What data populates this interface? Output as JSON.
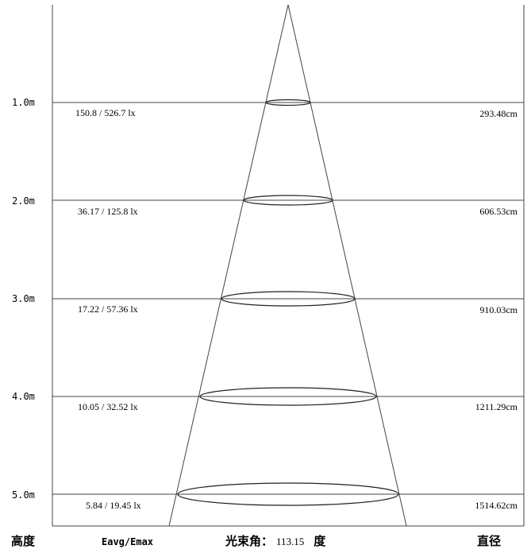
{
  "levels": [
    {
      "height_label": "1.0m",
      "lux": "150.8 / 526.7 lx",
      "diameter": "293.48cm"
    },
    {
      "height_label": "2.0m",
      "lux": "36.17 / 125.8 lx",
      "diameter": "606.53cm"
    },
    {
      "height_label": "3.0m",
      "lux": "17.22 / 57.36 lx",
      "diameter": "910.03cm"
    },
    {
      "height_label": "4.0m",
      "lux": "10.05 / 32.52 lx",
      "diameter": "1211.29cm"
    },
    {
      "height_label": "5.0m",
      "lux": "5.84 / 19.45 lx",
      "diameter": "1514.62cm"
    }
  ],
  "footer": {
    "height_label": "高度",
    "eavg_label": "Eavg/Emax",
    "beam_angle_label": "光束角：",
    "beam_angle_value": "113.15",
    "beam_angle_unit": "度",
    "diameter_label": "直径"
  }
}
